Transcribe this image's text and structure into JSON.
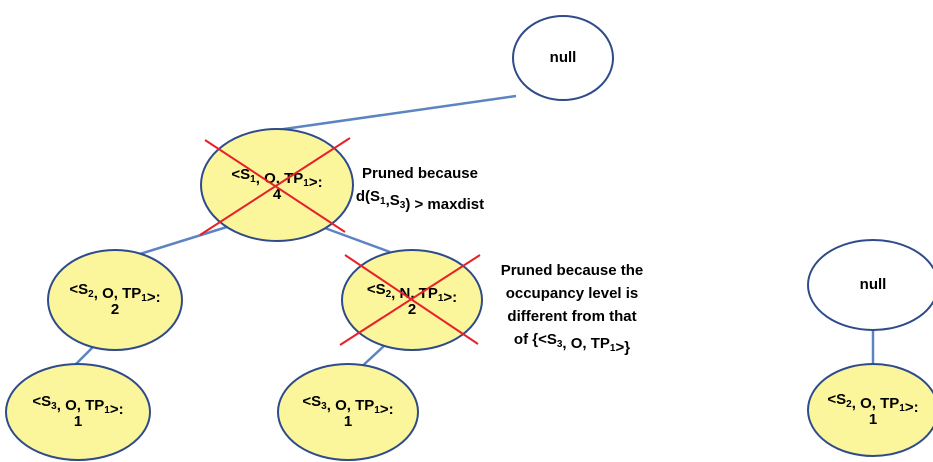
{
  "nodes": [
    {
      "lines": [
        [
          {
            "text": "null"
          }
        ]
      ]
    },
    {
      "lines": [
        [
          {
            "text": "<S"
          },
          {
            "sub": "1"
          },
          {
            "text": ", O, TP"
          },
          {
            "sub": "1"
          },
          {
            "text": ">:"
          }
        ],
        [
          {
            "text": "4"
          }
        ]
      ]
    },
    {
      "lines": [
        [
          {
            "text": "<S"
          },
          {
            "sub": "2"
          },
          {
            "text": ", O, TP"
          },
          {
            "sub": "1"
          },
          {
            "text": ">:"
          }
        ],
        [
          {
            "text": "2"
          }
        ]
      ]
    },
    {
      "lines": [
        [
          {
            "text": "<S"
          },
          {
            "sub": "2"
          },
          {
            "text": ", N, TP"
          },
          {
            "sub": "1"
          },
          {
            "text": ">:"
          }
        ],
        [
          {
            "text": "2"
          }
        ]
      ]
    },
    {
      "lines": [
        [
          {
            "text": "<S"
          },
          {
            "sub": "3"
          },
          {
            "text": ", O, TP"
          },
          {
            "sub": "1"
          },
          {
            "text": ">:"
          }
        ],
        [
          {
            "text": "1"
          }
        ]
      ]
    },
    {
      "lines": [
        [
          {
            "text": "<S"
          },
          {
            "sub": "3"
          },
          {
            "text": ", O, TP"
          },
          {
            "sub": "1"
          },
          {
            "text": ">:"
          }
        ],
        [
          {
            "text": "1"
          }
        ]
      ]
    },
    {
      "lines": [
        [
          {
            "text": "null"
          }
        ]
      ]
    },
    {
      "lines": [
        [
          {
            "text": "<S"
          },
          {
            "sub": "2"
          },
          {
            "text": ", O, TP"
          },
          {
            "sub": "1"
          },
          {
            "text": ">:"
          }
        ],
        [
          {
            "text": "1"
          }
        ]
      ]
    }
  ],
  "annotations": [
    {
      "lines": [
        [
          {
            "text": "Pruned because"
          }
        ],
        [
          {
            "text": "d(S"
          },
          {
            "sub": "1"
          },
          {
            "text": ",S"
          },
          {
            "sub": "3"
          },
          {
            "text": ") > maxdist"
          }
        ]
      ]
    },
    {
      "lines": [
        [
          {
            "text": "Pruned because the"
          }
        ],
        [
          {
            "text": "occupancy level is"
          }
        ],
        [
          {
            "text": "different from that"
          }
        ],
        [
          {
            "text": "of {<S"
          },
          {
            "sub": "3"
          },
          {
            "text": ", O, TP"
          },
          {
            "sub": "1"
          },
          {
            "text": ">}"
          }
        ]
      ]
    }
  ]
}
